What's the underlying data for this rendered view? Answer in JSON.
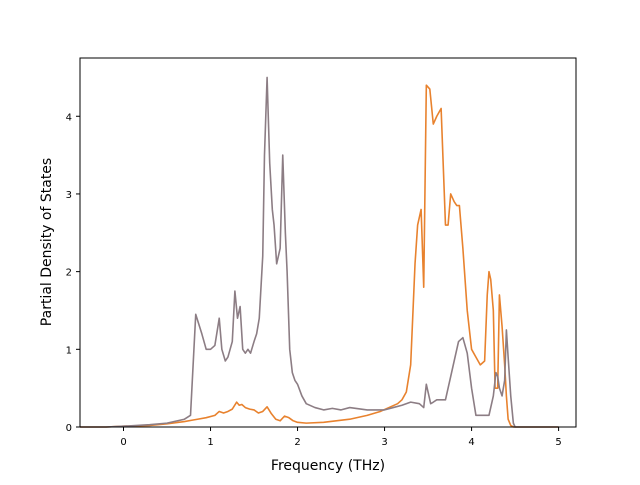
{
  "chart_data": {
    "type": "line",
    "title": "",
    "xlabel": "Frequency (THz)",
    "ylabel": "Partial Density of States",
    "xlim": [
      -0.5,
      5.2
    ],
    "ylim": [
      0,
      4.75
    ],
    "xticks": [
      0,
      1,
      2,
      3,
      4,
      5
    ],
    "yticks": [
      0,
      1,
      2,
      3,
      4
    ],
    "grid": false,
    "legend": "none",
    "series": [
      {
        "color": "#e8822e",
        "x": [
          -0.5,
          -0.2,
          0.0,
          0.3,
          0.5,
          0.7,
          0.8,
          0.85,
          0.95,
          1.05,
          1.1,
          1.15,
          1.2,
          1.25,
          1.3,
          1.33,
          1.36,
          1.4,
          1.45,
          1.5,
          1.55,
          1.6,
          1.65,
          1.7,
          1.75,
          1.8,
          1.85,
          1.9,
          1.95,
          2.0,
          2.1,
          2.3,
          2.6,
          2.8,
          2.95,
          3.05,
          3.15,
          3.2,
          3.25,
          3.3,
          3.35,
          3.38,
          3.42,
          3.45,
          3.48,
          3.52,
          3.56,
          3.6,
          3.65,
          3.7,
          3.73,
          3.76,
          3.8,
          3.83,
          3.86,
          3.9,
          3.95,
          4.0,
          4.05,
          4.1,
          4.15,
          4.18,
          4.2,
          4.22,
          4.25,
          4.27,
          4.3,
          4.32,
          4.35,
          4.38,
          4.4,
          4.42,
          4.45,
          4.48,
          4.5,
          4.55,
          4.7,
          5.0
        ],
        "y": [
          0.0,
          0.0,
          0.01,
          0.02,
          0.04,
          0.07,
          0.09,
          0.1,
          0.12,
          0.15,
          0.2,
          0.18,
          0.2,
          0.23,
          0.32,
          0.28,
          0.29,
          0.25,
          0.23,
          0.22,
          0.18,
          0.2,
          0.26,
          0.17,
          0.1,
          0.08,
          0.14,
          0.12,
          0.08,
          0.06,
          0.05,
          0.06,
          0.1,
          0.15,
          0.2,
          0.25,
          0.3,
          0.35,
          0.45,
          0.8,
          2.1,
          2.6,
          2.8,
          1.8,
          4.4,
          4.35,
          3.9,
          4.0,
          4.1,
          2.6,
          2.6,
          3.0,
          2.9,
          2.85,
          2.85,
          2.3,
          1.5,
          1.0,
          0.9,
          0.8,
          0.85,
          1.7,
          2.0,
          1.9,
          1.5,
          0.5,
          0.5,
          1.7,
          1.3,
          0.8,
          0.4,
          0.1,
          0.02,
          0.0,
          0.0,
          0.0,
          0.0,
          0.0
        ]
      },
      {
        "color": "#8c7d84",
        "x": [
          -0.5,
          -0.2,
          0.0,
          0.3,
          0.5,
          0.7,
          0.77,
          0.8,
          0.83,
          0.9,
          0.95,
          1.0,
          1.05,
          1.1,
          1.13,
          1.17,
          1.2,
          1.25,
          1.28,
          1.31,
          1.34,
          1.37,
          1.4,
          1.43,
          1.46,
          1.5,
          1.53,
          1.56,
          1.6,
          1.62,
          1.65,
          1.68,
          1.71,
          1.73,
          1.76,
          1.8,
          1.83,
          1.86,
          1.88,
          1.91,
          1.94,
          1.97,
          2.0,
          2.05,
          2.1,
          2.2,
          2.3,
          2.4,
          2.5,
          2.6,
          2.8,
          3.0,
          3.1,
          3.2,
          3.3,
          3.4,
          3.45,
          3.48,
          3.5,
          3.53,
          3.56,
          3.6,
          3.7,
          3.75,
          3.8,
          3.85,
          3.9,
          3.95,
          4.0,
          4.05,
          4.1,
          4.2,
          4.25,
          4.28,
          4.3,
          4.32,
          4.35,
          4.38,
          4.4,
          4.42,
          4.45,
          4.48,
          4.5,
          4.6,
          5.0
        ],
        "y": [
          0.0,
          0.0,
          0.01,
          0.03,
          0.05,
          0.1,
          0.15,
          0.8,
          1.45,
          1.2,
          1.0,
          1.0,
          1.05,
          1.4,
          1.0,
          0.85,
          0.9,
          1.1,
          1.75,
          1.4,
          1.55,
          1.0,
          0.95,
          1.0,
          0.95,
          1.1,
          1.2,
          1.4,
          2.2,
          3.5,
          4.5,
          3.4,
          2.8,
          2.6,
          2.1,
          2.3,
          3.5,
          2.5,
          2.0,
          1.0,
          0.7,
          0.6,
          0.55,
          0.4,
          0.3,
          0.25,
          0.22,
          0.24,
          0.22,
          0.25,
          0.22,
          0.22,
          0.25,
          0.28,
          0.32,
          0.3,
          0.25,
          0.55,
          0.45,
          0.3,
          0.32,
          0.35,
          0.35,
          0.6,
          0.85,
          1.1,
          1.15,
          0.95,
          0.5,
          0.15,
          0.15,
          0.15,
          0.4,
          0.7,
          0.65,
          0.5,
          0.4,
          0.6,
          1.25,
          0.9,
          0.4,
          0.05,
          0.0,
          0.0,
          0.0
        ]
      }
    ]
  }
}
